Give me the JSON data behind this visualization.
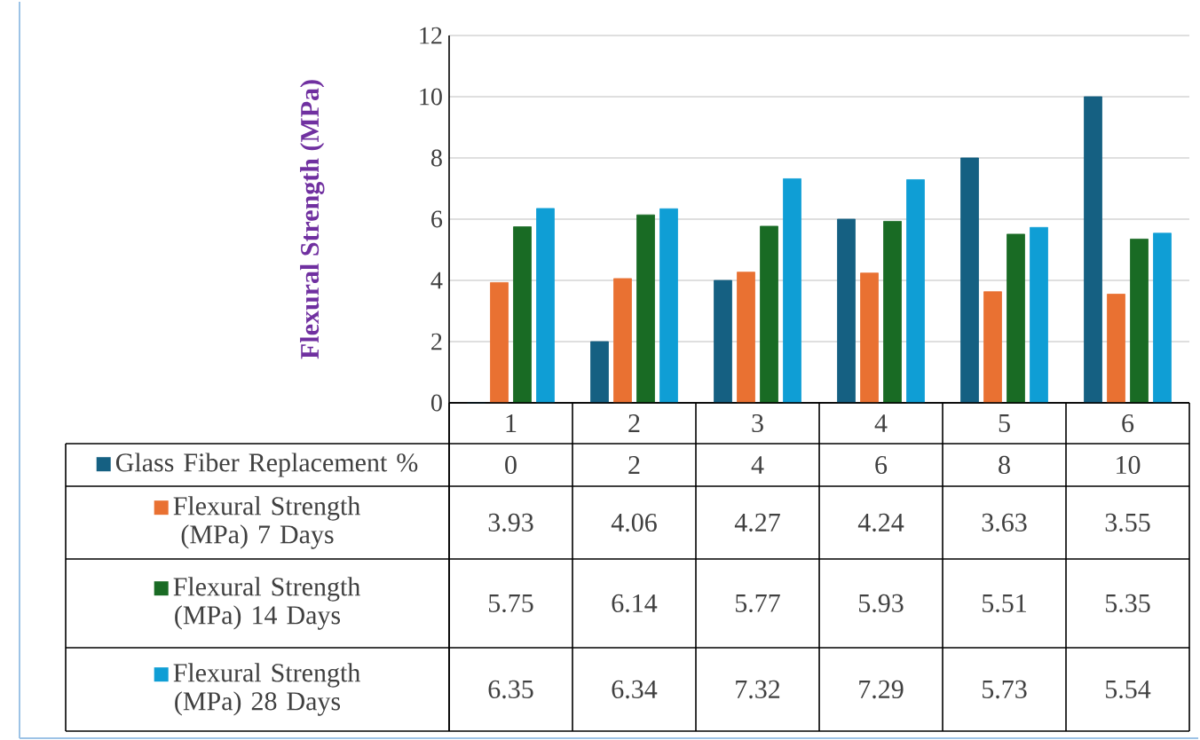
{
  "chart_data": {
    "type": "bar",
    "ylabel": "Flexural Strength (MPa)",
    "categories": [
      "1",
      "2",
      "3",
      "4",
      "5",
      "6"
    ],
    "series": [
      {
        "name": "Glass Fiber Replacement %",
        "color": "#156082",
        "values": [
          0,
          2,
          4,
          6,
          8,
          10
        ]
      },
      {
        "name": "Flexural Strength (MPa) 7 Days",
        "color": "#e97132",
        "values": [
          3.93,
          4.06,
          4.27,
          4.24,
          3.63,
          3.55
        ]
      },
      {
        "name": "Flexural Strength (MPa) 14 Days",
        "color": "#196b24",
        "values": [
          5.75,
          6.14,
          5.77,
          5.93,
          5.51,
          5.35
        ]
      },
      {
        "name": "Flexural Strength (MPa) 28 Days",
        "color": "#0f9ed5",
        "values": [
          6.35,
          6.34,
          7.32,
          7.29,
          5.73,
          5.54
        ]
      }
    ],
    "ylim": [
      0,
      12
    ],
    "yticks": [
      0,
      2,
      4,
      6,
      8,
      10,
      12
    ],
    "grid": "y",
    "legend": "bottom",
    "data_labels": true
  }
}
